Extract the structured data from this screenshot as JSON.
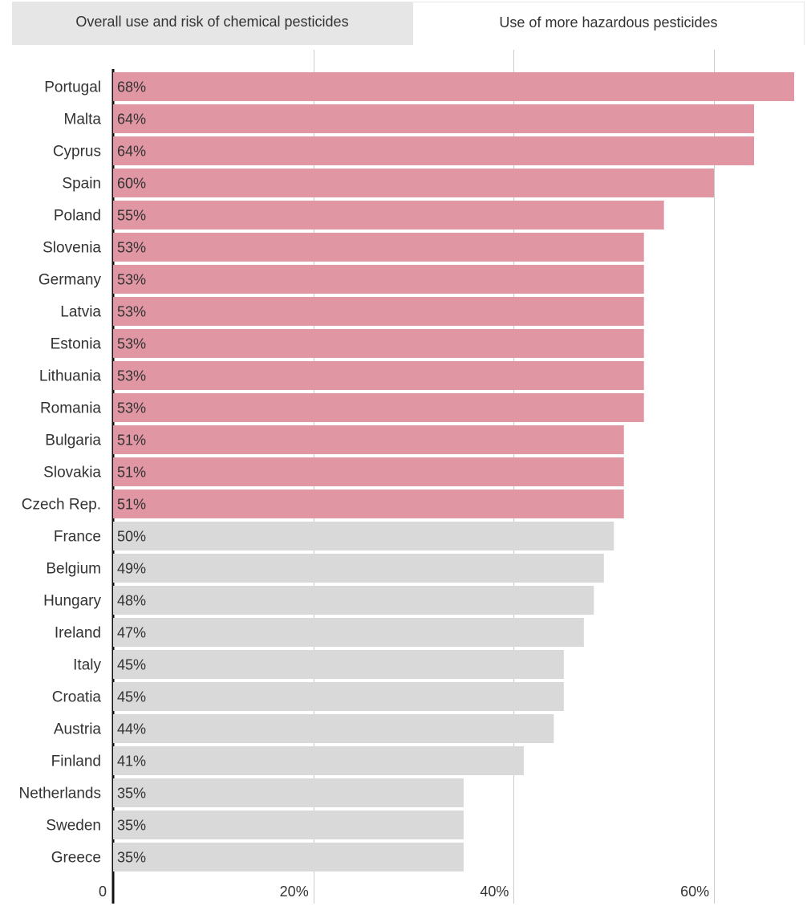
{
  "tabs": [
    {
      "label": "Overall use and risk of chemical pesticides",
      "active": false
    },
    {
      "label": "Use of more hazardous pesticides",
      "active": true
    }
  ],
  "colors": {
    "highlight": "#e096a3",
    "neutral": "#d9d9d9",
    "grid": "#cccccc",
    "axis": "#111111",
    "text": "#333333"
  },
  "chart_data": {
    "type": "bar",
    "orientation": "horizontal",
    "title": "",
    "xlabel": "",
    "ylabel": "",
    "xlim": [
      0,
      68
    ],
    "x_ticks": [
      0,
      20,
      40,
      60
    ],
    "x_tick_labels": [
      "0",
      "20%",
      "40%",
      "60%"
    ],
    "grid": true,
    "highlight_count": 14,
    "categories": [
      "Portugal",
      "Malta",
      "Cyprus",
      "Spain",
      "Poland",
      "Slovenia",
      "Germany",
      "Latvia",
      "Estonia",
      "Lithuania",
      "Romania",
      "Bulgaria",
      "Slovakia",
      "Czech Rep.",
      "France",
      "Belgium",
      "Hungary",
      "Ireland",
      "Italy",
      "Croatia",
      "Austria",
      "Finland",
      "Netherlands",
      "Sweden",
      "Greece"
    ],
    "values": [
      68,
      64,
      64,
      60,
      55,
      53,
      53,
      53,
      53,
      53,
      53,
      51,
      51,
      51,
      50,
      49,
      48,
      47,
      45,
      45,
      44,
      41,
      35,
      35,
      35
    ],
    "value_labels": [
      "68%",
      "64%",
      "64%",
      "60%",
      "55%",
      "53%",
      "53%",
      "53%",
      "53%",
      "53%",
      "53%",
      "51%",
      "51%",
      "51%",
      "50%",
      "49%",
      "48%",
      "47%",
      "45%",
      "45%",
      "44%",
      "41%",
      "35%",
      "35%",
      "35%"
    ]
  }
}
